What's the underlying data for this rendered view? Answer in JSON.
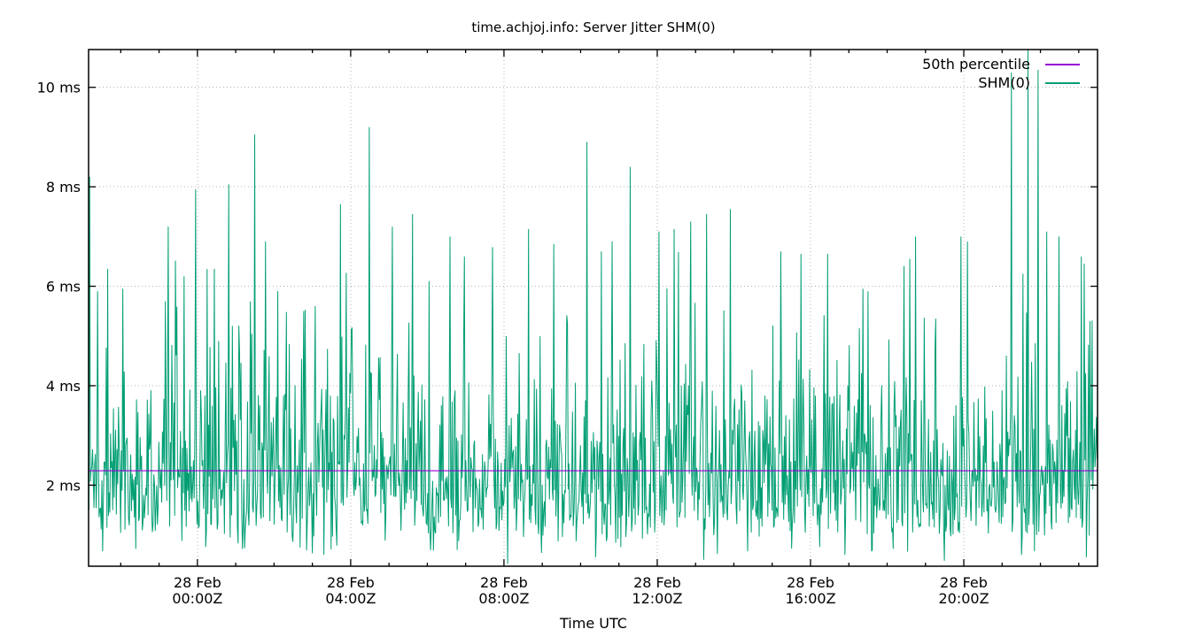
{
  "chart_data": {
    "type": "line",
    "title": "time.achjoj.info: Server Jitter SHM(0)",
    "xlabel": "Time UTC",
    "ylabel": "",
    "background": "#ffffff",
    "grid": {
      "show": true,
      "style": "dotted",
      "color": "#b4b4b4"
    },
    "axis_color": "#000000",
    "x_axis": {
      "start_hours": -2.84,
      "end_hours": 23.49,
      "minor_tick_every_hours": 1,
      "major_ticks": [
        {
          "hours": 0,
          "label_line1": "28 Feb",
          "label_line2": "00:00Z"
        },
        {
          "hours": 4,
          "label_line1": "28 Feb",
          "label_line2": "04:00Z"
        },
        {
          "hours": 8,
          "label_line1": "28 Feb",
          "label_line2": "08:00Z"
        },
        {
          "hours": 12,
          "label_line1": "28 Feb",
          "label_line2": "12:00Z"
        },
        {
          "hours": 16,
          "label_line1": "28 Feb",
          "label_line2": "16:00Z"
        },
        {
          "hours": 20,
          "label_line1": "28 Feb",
          "label_line2": "20:00Z"
        }
      ]
    },
    "y_axis": {
      "min": 0.37,
      "max": 10.76,
      "ticks": [
        {
          "value": 2,
          "label": "2 ms"
        },
        {
          "value": 4,
          "label": "4 ms"
        },
        {
          "value": 6,
          "label": "6 ms"
        },
        {
          "value": 8,
          "label": "8 ms"
        },
        {
          "value": 10,
          "label": "10 ms"
        }
      ]
    },
    "legend": {
      "position": "top-right",
      "entries": [
        {
          "label": "50th percentile",
          "color": "#9400D3"
        },
        {
          "label": "SHM(0)",
          "color": "#009E73"
        }
      ]
    },
    "series": [
      {
        "name": "50th percentile",
        "type": "hline",
        "value": 2.29,
        "color": "#9400D3"
      },
      {
        "name": "SHM(0)",
        "type": "noisy_line",
        "color": "#009E73",
        "observed_stats": {
          "median_ms": 2.29,
          "typical_band_ms": [
            1.0,
            5.5
          ],
          "min_ms": 0.4,
          "max_ms": 10.8
        },
        "synthesis": {
          "seed": 1337,
          "n_points": 1400,
          "base": 0.95,
          "scale": 1.74,
          "power": 0.7,
          "random_cap": 7.6,
          "dip_probability": 0.03,
          "dip_low": 0.6,
          "dip_high": 1.1,
          "mod_amp": 0.1,
          "mod_freq": 0.5,
          "mod_phase": 1.0
        },
        "spikes": [
          [
            -2.82,
            8.2
          ],
          [
            -2.6,
            5.9
          ],
          [
            -2.35,
            6.35
          ],
          [
            -1.95,
            5.95
          ],
          [
            -0.76,
            7.2
          ],
          [
            -0.35,
            6.2
          ],
          [
            -0.05,
            7.95
          ],
          [
            0.45,
            6.35
          ],
          [
            0.81,
            8.05
          ],
          [
            1.5,
            9.05
          ],
          [
            1.78,
            6.9
          ],
          [
            2.1,
            5.9
          ],
          [
            3.07,
            5.6
          ],
          [
            3.74,
            7.65
          ],
          [
            4.48,
            9.2
          ],
          [
            5.08,
            7.2
          ],
          [
            5.61,
            7.45
          ],
          [
            6.05,
            6.1
          ],
          [
            6.6,
            7.0
          ],
          [
            6.97,
            6.6
          ],
          [
            8.64,
            7.15
          ],
          [
            9.3,
            6.85
          ],
          [
            10.16,
            8.9
          ],
          [
            10.55,
            6.7
          ],
          [
            10.83,
            6.9
          ],
          [
            11.29,
            8.4
          ],
          [
            12.05,
            7.1
          ],
          [
            12.44,
            7.15
          ],
          [
            12.88,
            7.3
          ],
          [
            13.28,
            7.45
          ],
          [
            13.9,
            7.55
          ],
          [
            15.22,
            6.7
          ],
          [
            15.75,
            6.65
          ],
          [
            16.44,
            6.65
          ],
          [
            17.36,
            5.95
          ],
          [
            18.6,
            6.55
          ],
          [
            18.75,
            7.0
          ],
          [
            19.93,
            7.0
          ],
          [
            20.1,
            6.9
          ],
          [
            21.24,
            10.3
          ],
          [
            21.68,
            10.76
          ],
          [
            21.93,
            10.35
          ],
          [
            22.17,
            7.1
          ],
          [
            23.07,
            6.6
          ],
          [
            23.3,
            5.3
          ]
        ],
        "dips": [
          [
            -1.6,
            0.72
          ],
          [
            3.3,
            0.6
          ],
          [
            8.1,
            0.42
          ],
          [
            10.4,
            0.55
          ],
          [
            13.21,
            0.5
          ],
          [
            16.9,
            0.6
          ],
          [
            19.49,
            0.48
          ],
          [
            21.5,
            0.6
          ],
          [
            23.2,
            0.55
          ]
        ]
      }
    ]
  }
}
